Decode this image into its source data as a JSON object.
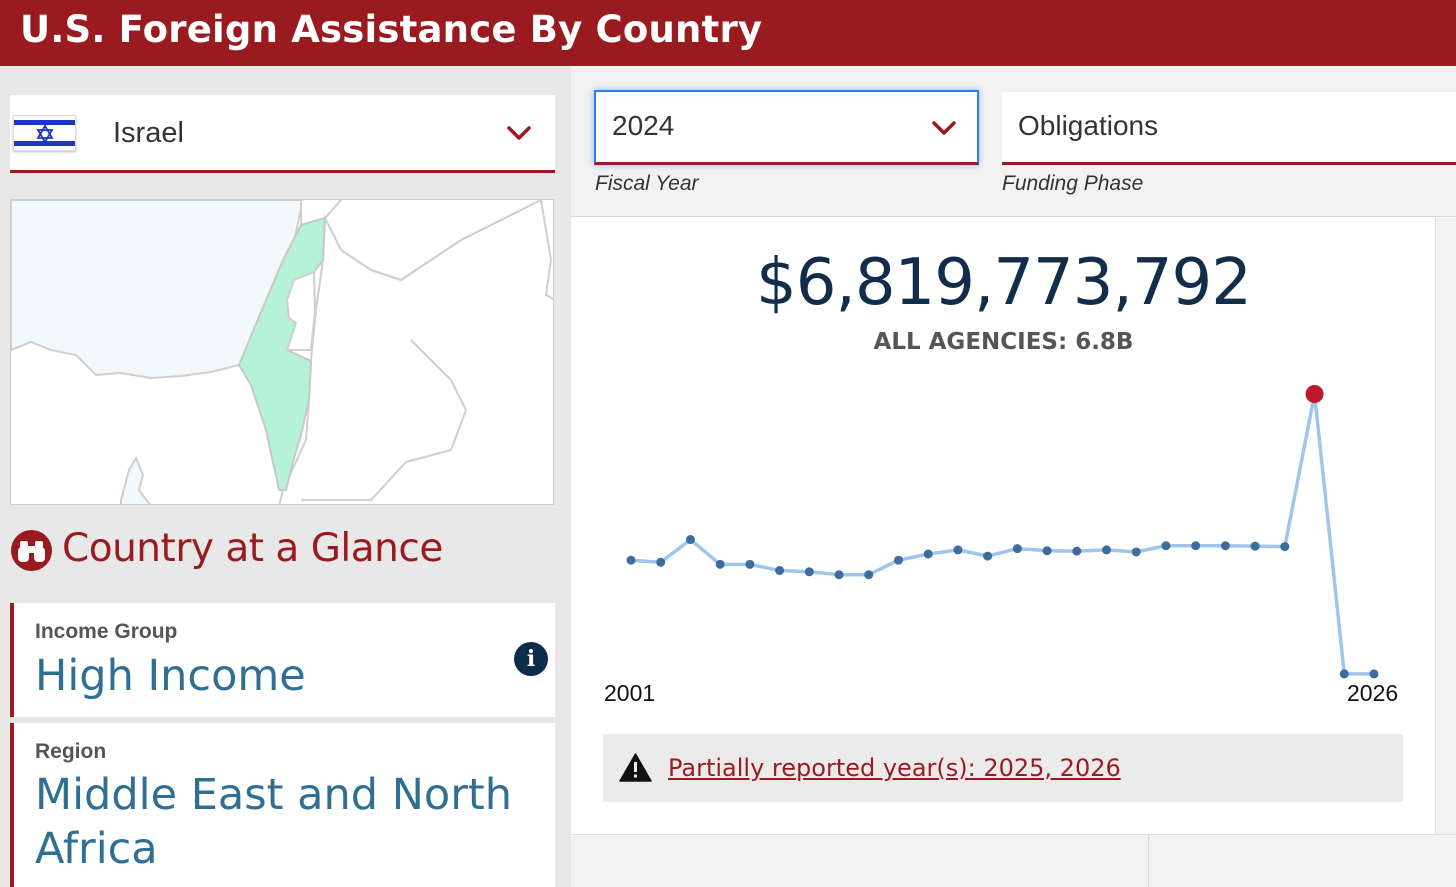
{
  "header": {
    "title": "U.S. Foreign Assistance By Country"
  },
  "country_selector": {
    "value": "Israel",
    "flag_icon": "israel-flag-icon"
  },
  "glance": {
    "title": "Country at a Glance",
    "icon": "binoculars-icon"
  },
  "income_group": {
    "label": "Income Group",
    "value": "High Income"
  },
  "region": {
    "label": "Region",
    "value": "Middle East and North Africa"
  },
  "filters": {
    "fiscal_year": {
      "value": "2024",
      "caption": "Fiscal Year"
    },
    "funding_phase": {
      "value": "Obligations",
      "caption": "Funding Phase"
    }
  },
  "summary": {
    "amount": "$6,819,773,792",
    "agencies": "ALL AGENCIES: 6.8B"
  },
  "notice": {
    "text": "Partially reported year(s): 2025, 2026"
  },
  "colors": {
    "brand": "#9a1b1f",
    "line": "#9fc5ec",
    "point": "#3f6d9b",
    "highlight": "#c0182b",
    "country_fill": "#b5f2d6"
  },
  "chart_data": {
    "type": "line",
    "x_start_label": "2001",
    "x_end_label": "2026",
    "x": [
      2001,
      2002,
      2003,
      2004,
      2005,
      2006,
      2007,
      2008,
      2009,
      2010,
      2011,
      2012,
      2013,
      2014,
      2015,
      2016,
      2017,
      2018,
      2019,
      2020,
      2021,
      2022,
      2023,
      2024,
      2025,
      2026
    ],
    "values": [
      2.8,
      2.75,
      3.3,
      2.7,
      2.7,
      2.55,
      2.52,
      2.45,
      2.45,
      2.8,
      2.95,
      3.05,
      2.9,
      3.08,
      3.03,
      3.02,
      3.05,
      3.0,
      3.15,
      3.15,
      3.15,
      3.14,
      3.13,
      6.82,
      0.05,
      0.05
    ],
    "unit": "billion USD",
    "highlight_x": 2024,
    "ylim": [
      0,
      7.2
    ]
  }
}
